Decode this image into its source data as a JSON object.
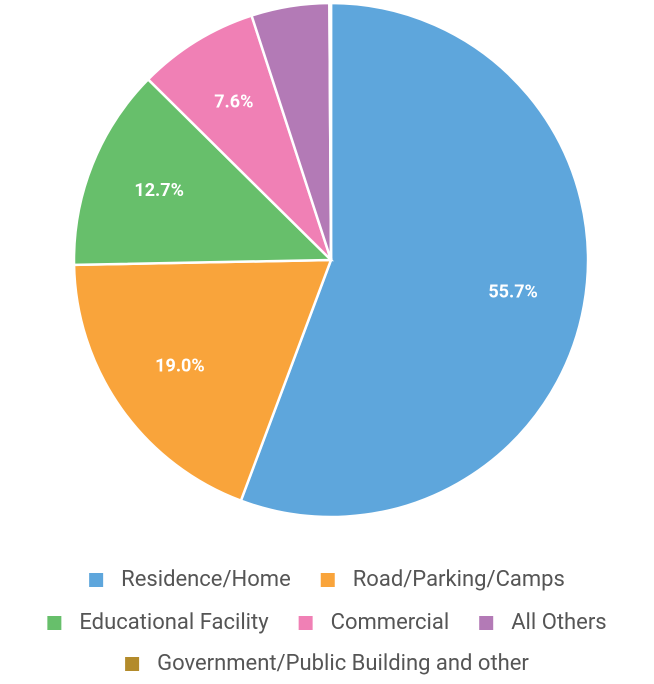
{
  "chart_data": {
    "type": "pie",
    "categories": [
      "Residence/Home",
      "Road/Parking/Camps",
      "Educational Facility",
      "Commercial",
      "All Others",
      "Government/Public Building and other"
    ],
    "values": [
      55.7,
      19.0,
      12.7,
      7.6,
      4.9,
      0.1
    ],
    "value_labels": [
      "55.7%",
      "19.0%",
      "12.7%",
      "7.6%",
      null,
      null
    ],
    "colors": [
      "#5ea6dc",
      "#f9a43b",
      "#67bf6b",
      "#f080b5",
      "#b37ab6",
      "#b38b2b"
    ],
    "legend": "bottom"
  }
}
